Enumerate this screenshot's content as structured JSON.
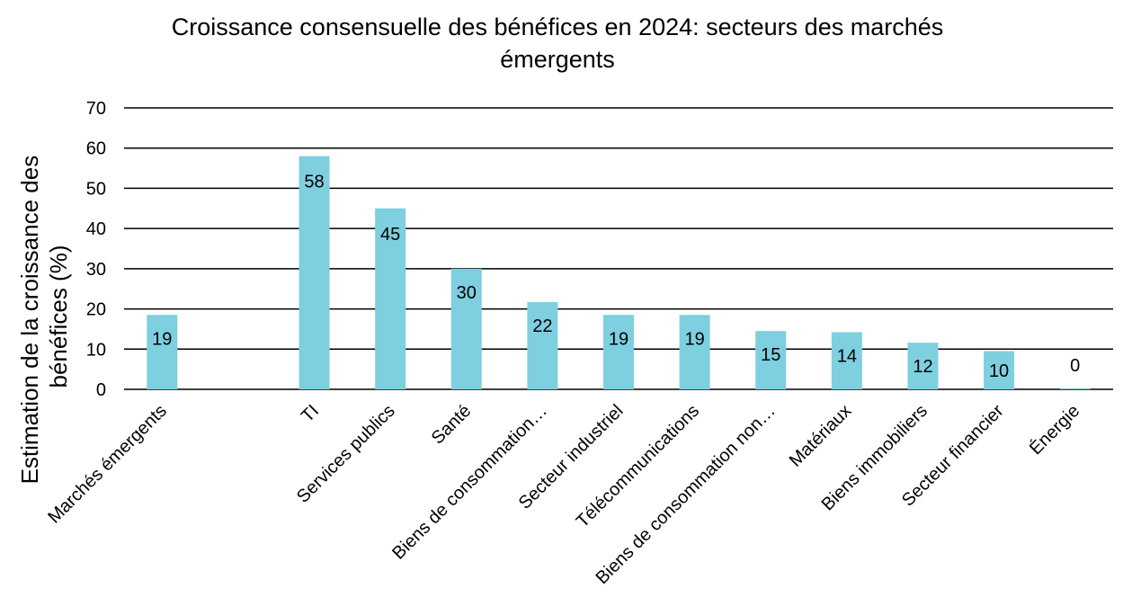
{
  "chart_data": {
    "type": "bar",
    "title": [
      "Croissance consensuelle des bénéfices en 2024: secteurs des marchés",
      "émergents"
    ],
    "ylabel": [
      "Estimation de la croissance des",
      "bénéfices (%)"
    ],
    "xlabel": "",
    "ylim": [
      0,
      70
    ],
    "yticks": [
      0,
      10,
      20,
      30,
      40,
      50,
      60,
      70
    ],
    "grid": true,
    "categories": [
      "Marchés émergents",
      "",
      "TI",
      "Services publics",
      "Santé",
      "Biens de consommation…",
      "Secteur industriel",
      "Télécommunications",
      "Biens de consommation non…",
      "Matériaux",
      "Biens immobiliers",
      "Secteur financier",
      "Énergie"
    ],
    "values": [
      18.5,
      null,
      58,
      45,
      30,
      21.7,
      18.5,
      18.5,
      14.5,
      14.2,
      11.6,
      9.5,
      0.2
    ],
    "data_labels": [
      "19",
      "",
      "58",
      "45",
      "30",
      "22",
      "19",
      "19",
      "15",
      "14",
      "12",
      "10",
      "0"
    ],
    "bar_color": "#7ecfe0"
  }
}
